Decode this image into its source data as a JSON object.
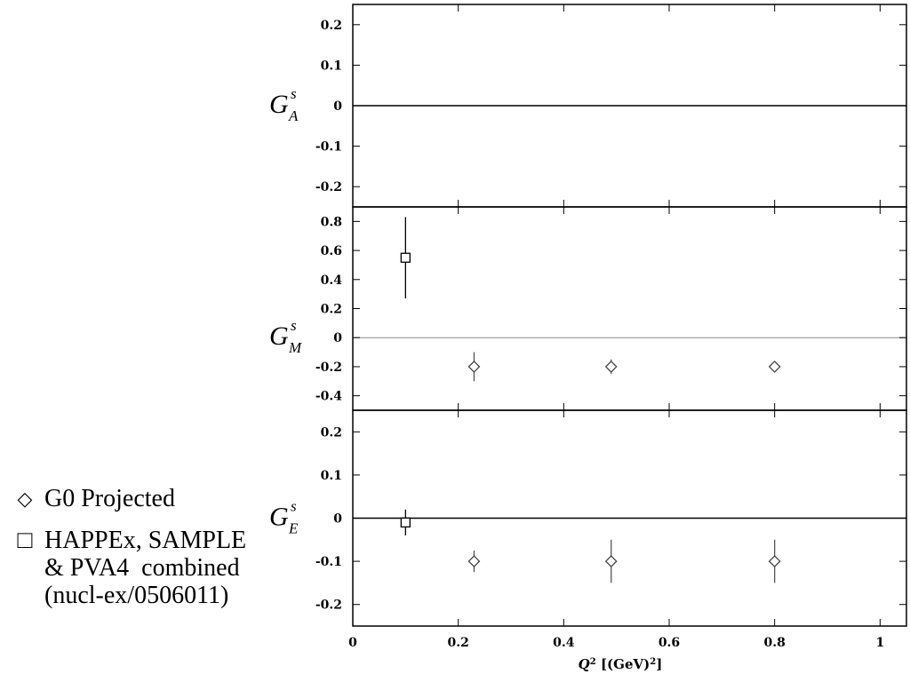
{
  "chart_data": [
    {
      "type": "scatter",
      "ylabel": {
        "base": "G",
        "sup": "s",
        "sub": "A"
      },
      "ylim": [
        -0.25,
        0.25
      ],
      "yticks": [
        0.2,
        0.1,
        0,
        -0.1,
        -0.2
      ],
      "ytick_labels": [
        "0.2",
        "0.1",
        "0",
        "-0.1",
        "-0.2"
      ],
      "series": []
    },
    {
      "type": "scatter",
      "ylabel": {
        "base": "G",
        "sup": "s",
        "sub": "M"
      },
      "ylim": [
        -0.5,
        0.9
      ],
      "yticks": [
        0.8,
        0.6,
        0.4,
        0.2,
        0,
        -0.2,
        -0.4
      ],
      "ytick_labels": [
        "0.8",
        "0.6",
        "0.4",
        "0.2",
        "0",
        "-0.2",
        "-0.4"
      ],
      "series": [
        {
          "marker": "square",
          "points": [
            {
              "x": 0.1,
              "y": 0.55,
              "err": 0.28
            }
          ]
        },
        {
          "marker": "diamond",
          "points": [
            {
              "x": 0.23,
              "y": -0.2,
              "err": 0.1
            },
            {
              "x": 0.49,
              "y": -0.2,
              "err": 0.05
            },
            {
              "x": 0.8,
              "y": -0.2,
              "err": 0.03
            }
          ]
        }
      ]
    },
    {
      "type": "scatter",
      "ylabel": {
        "base": "G",
        "sup": "s",
        "sub": "E"
      },
      "ylim": [
        -0.25,
        0.25
      ],
      "yticks": [
        0.2,
        0.1,
        0,
        -0.1,
        -0.2
      ],
      "ytick_labels": [
        "0.2",
        "0.1",
        "0",
        "-0.1",
        "-0.2"
      ],
      "series": [
        {
          "marker": "square",
          "points": [
            {
              "x": 0.1,
              "y": -0.01,
              "err": 0.03
            }
          ]
        },
        {
          "marker": "diamond",
          "points": [
            {
              "x": 0.23,
              "y": -0.1,
              "err": 0.025
            },
            {
              "x": 0.49,
              "y": -0.1,
              "err": 0.05
            },
            {
              "x": 0.8,
              "y": -0.1,
              "err": 0.05
            }
          ]
        }
      ]
    }
  ],
  "x_axis": {
    "xlim": [
      0,
      1.05
    ],
    "xticks": [
      0,
      0.2,
      0.4,
      0.6,
      0.8,
      1
    ],
    "xtick_labels": [
      "0",
      "0.2",
      "0.4",
      "0.6",
      "0.8",
      "1"
    ],
    "label_main": "Q",
    "label_sup": "2",
    "label_rest": " [(GeV)",
    "label_sup2": "2",
    "label_end": "]"
  },
  "legend": {
    "items": [
      {
        "marker_icon": "diamond-icon",
        "symbol": "◇",
        "text": "G0 Projected"
      },
      {
        "marker_icon": "square-icon",
        "symbol": "□",
        "text": "HAPPEx, SAMPLE\n& PVA4  combined\n(nucl-ex/0506011)"
      }
    ]
  }
}
